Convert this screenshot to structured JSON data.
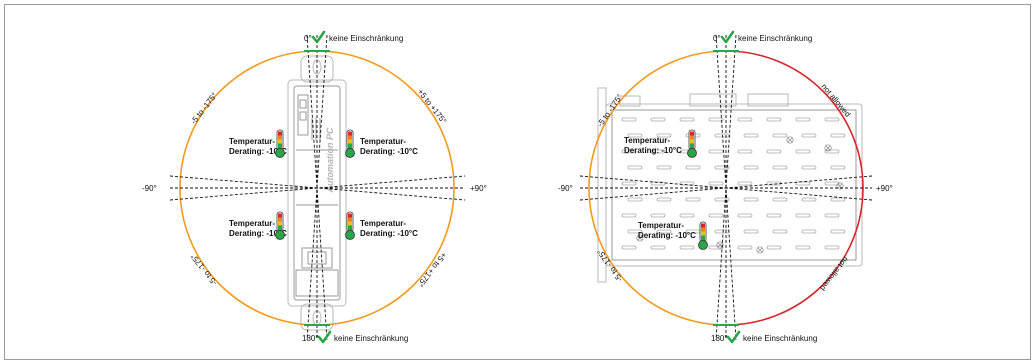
{
  "colors": {
    "allowed_arc": "#f39a1e",
    "not_allowed_arc": "#d9262c",
    "ok_check": "#2aa54a",
    "frame": "#9b9b9b"
  },
  "left": {
    "top_label": "0°",
    "top_note": "keine Einschränkung",
    "bottom_label": "180°",
    "bottom_note": "keine Einschränkung",
    "left_label": "-90°",
    "right_label": "+90°",
    "arc_upper_left": "-5 to -175°",
    "arc_upper_right": "+5 to +175°",
    "arc_lower_left": "-5 to -175°",
    "arc_lower_right": "+5 to +175°",
    "device_brand": "Automation PC",
    "derating": [
      {
        "line1": "Temperatur-",
        "line2": "Derating: -10°C"
      },
      {
        "line1": "Temperatur-",
        "line2": "Derating: -10°C"
      },
      {
        "line1": "Temperatur-",
        "line2": "Derating: -10°C"
      },
      {
        "line1": "Temperatur-",
        "line2": "Derating: -10°C"
      }
    ]
  },
  "right": {
    "top_label": "0°",
    "top_note": "keine Einschränkung",
    "bottom_label": "180°",
    "bottom_note": "keine Einschränkung",
    "left_label": "-90°",
    "right_label": "+90°",
    "arc_upper_left": "-5 to -175°",
    "arc_lower_left": "-5 to -175°",
    "not_allowed_upper": "not allowed",
    "not_allowed_lower": "not allowed",
    "derating": [
      {
        "line1": "Temperatur-",
        "line2": "Derating: -10°C"
      },
      {
        "line1": "Temperatur-",
        "line2": "Derating: -10°C"
      }
    ]
  }
}
